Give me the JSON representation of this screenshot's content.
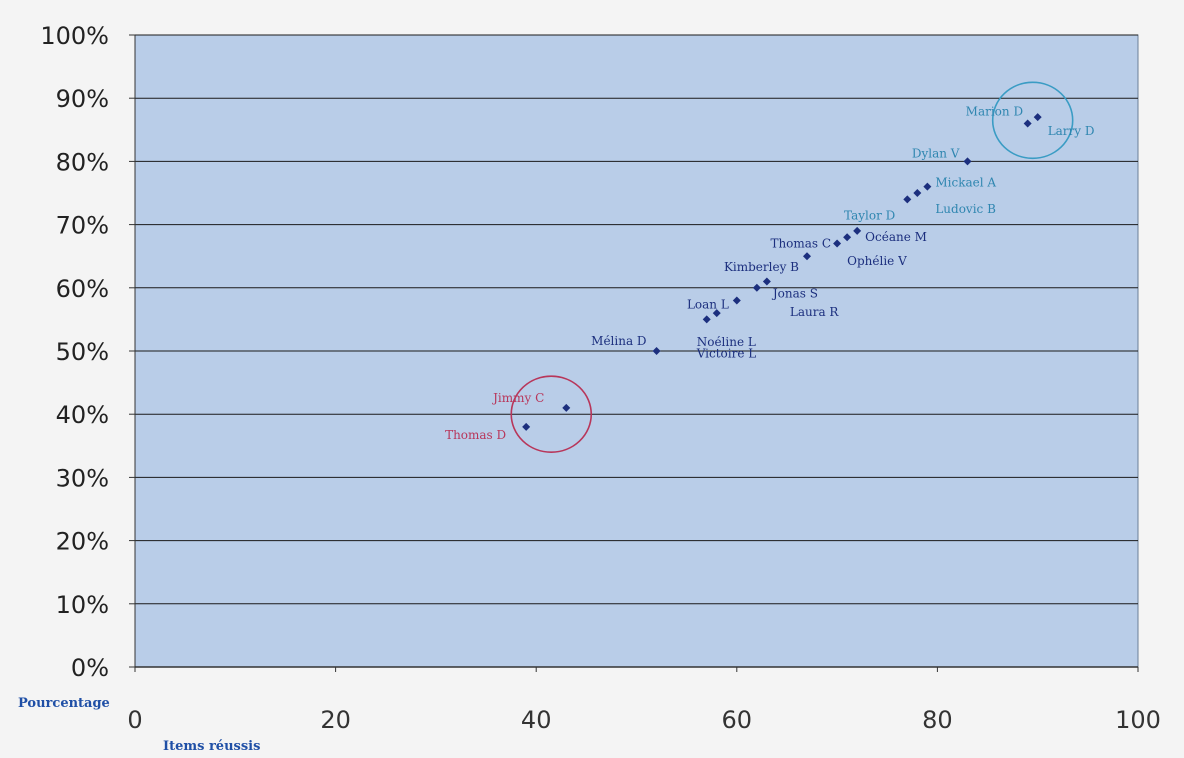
{
  "chart_data": {
    "type": "scatter",
    "title": "",
    "xlabel": "Items réussis",
    "ylabel": "Pourcentage",
    "xlim": [
      0,
      100
    ],
    "ylim": [
      0,
      1
    ],
    "x_ticks": [
      "0",
      "20",
      "40",
      "60",
      "80",
      "100"
    ],
    "y_ticks": [
      "0%",
      "10%",
      "20%",
      "30%",
      "40%",
      "50%",
      "60%",
      "70%",
      "80%",
      "90%",
      "100%"
    ],
    "grid": "horizontal",
    "legend": "none",
    "marker_color": "#1c2f7e",
    "plot_background": "#b9cde8",
    "points": [
      {
        "x": 89,
        "y": 0.86
      },
      {
        "x": 90,
        "y": 0.87
      },
      {
        "x": 83,
        "y": 0.8
      },
      {
        "x": 79,
        "y": 0.76
      },
      {
        "x": 78,
        "y": 0.75
      },
      {
        "x": 77,
        "y": 0.74
      },
      {
        "x": 72,
        "y": 0.69
      },
      {
        "x": 71,
        "y": 0.68
      },
      {
        "x": 70,
        "y": 0.67
      },
      {
        "x": 67,
        "y": 0.65
      },
      {
        "x": 63,
        "y": 0.61
      },
      {
        "x": 62,
        "y": 0.6
      },
      {
        "x": 60,
        "y": 0.58
      },
      {
        "x": 58,
        "y": 0.56
      },
      {
        "x": 57,
        "y": 0.55
      },
      {
        "x": 52,
        "y": 0.5
      },
      {
        "x": 43,
        "y": 0.41
      },
      {
        "x": 39,
        "y": 0.38
      }
    ],
    "annotations": [
      {
        "text": "Marion D",
        "x": 89,
        "y": 0.86,
        "color": "#2f86b0"
      },
      {
        "text": "Larry D",
        "x": 90,
        "y": 0.87,
        "color": "#2f86b0"
      },
      {
        "text": "Dylan V",
        "x": 83,
        "y": 0.8,
        "color": "#2f86b0"
      },
      {
        "text": "Mickael A",
        "x": 79,
        "y": 0.76,
        "color": "#2f86b0"
      },
      {
        "text": "Ludovic B",
        "x": 78,
        "y": 0.75,
        "color": "#2f86b0"
      },
      {
        "text": "Taylor D",
        "x": 77,
        "y": 0.74,
        "color": "#2f86b0"
      },
      {
        "text": "Océane M",
        "x": 72,
        "y": 0.69,
        "color": "#1c2f7e"
      },
      {
        "text": "Ophélie V",
        "x": 71,
        "y": 0.68,
        "color": "#1c2f7e"
      },
      {
        "text": "Thomas C",
        "x": 70,
        "y": 0.67,
        "color": "#1c2f7e"
      },
      {
        "text": "Kimberley B",
        "x": 67,
        "y": 0.65,
        "color": "#1c2f7e"
      },
      {
        "text": "Jonas S",
        "x": 63,
        "y": 0.61,
        "color": "#1c2f7e"
      },
      {
        "text": "Laura R",
        "x": 62,
        "y": 0.6,
        "color": "#1c2f7e"
      },
      {
        "text": "Loan L",
        "x": 60,
        "y": 0.58,
        "color": "#1c2f7e"
      },
      {
        "text": "Noéline L",
        "x": 58,
        "y": 0.56,
        "color": "#1c2f7e"
      },
      {
        "text": "Victoire L",
        "x": 57,
        "y": 0.55,
        "color": "#1c2f7e"
      },
      {
        "text": "Mélina D",
        "x": 52,
        "y": 0.5,
        "color": "#1c2f7e"
      },
      {
        "text": "Jimmy C",
        "x": 43,
        "y": 0.41,
        "color": "#b8365a"
      },
      {
        "text": "Thomas D",
        "x": 39,
        "y": 0.38,
        "color": "#b8365a"
      }
    ],
    "highlight_circles": [
      {
        "cx": 89.5,
        "cy": 0.865,
        "color": "#3a9cc4"
      },
      {
        "cx": 41.5,
        "cy": 0.4,
        "color": "#b8365a"
      }
    ]
  }
}
